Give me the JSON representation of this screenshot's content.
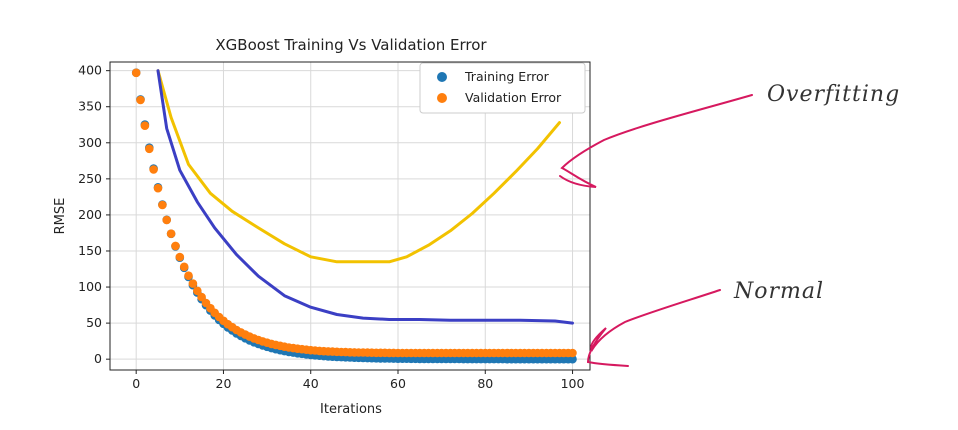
{
  "chart_data": {
    "type": "scatter",
    "title": "XGBoost Training Vs Validation Error",
    "xlabel": "Iterations",
    "ylabel": "RMSE",
    "xlim": [
      -6,
      104
    ],
    "ylim": [
      -15,
      412
    ],
    "xticks": [
      0,
      20,
      40,
      60,
      80,
      100
    ],
    "yticks": [
      0,
      50,
      100,
      150,
      200,
      250,
      300,
      350,
      400
    ],
    "grid": true,
    "legend_position": "top-right",
    "series": [
      {
        "name": "Training Error",
        "color": "#1f77b4",
        "values": [
          397.1,
          360.1,
          325.4,
          293.2,
          264.4,
          238.3,
          214.3,
          193.2,
          173.8,
          156.4,
          140.7,
          126.7,
          114.0,
          102.6,
          92.3,
          83.1,
          74.8,
          67.3,
          60.5,
          54.5,
          49.0,
          44.1,
          39.7,
          35.7,
          32.2,
          28.9,
          26.1,
          23.4,
          21.1,
          19.0,
          17.1,
          15.4,
          13.8,
          12.5,
          11.2,
          10.1,
          9.1,
          8.2,
          7.4,
          6.6,
          6.0,
          5.4,
          4.8,
          4.3,
          3.9,
          3.5,
          3.2,
          2.9,
          2.6,
          2.3,
          2.1,
          1.9,
          1.7,
          1.5,
          1.4,
          1.2,
          1.1,
          1.0,
          0.9,
          0.8,
          0.7,
          0.7,
          0.6,
          0.5,
          0.5,
          0.4,
          0.4,
          0.3,
          0.3,
          0.3,
          0.3,
          0.2,
          0.2,
          0.2,
          0.2,
          0.1,
          0.1,
          0.1,
          0.1,
          0.1,
          0.1,
          0.1,
          0.1,
          0.1,
          0.1,
          0.0,
          0.0,
          0.0,
          0.0,
          0.0,
          0.0,
          0.0,
          0.0,
          0.0,
          0.0,
          0.0,
          0.0,
          0.0,
          0.0,
          0.0,
          0.0
        ]
      },
      {
        "name": "Validation Error",
        "color": "#ff7f0e",
        "values": [
          397.0,
          359.3,
          323.7,
          291.7,
          263.0,
          237.0,
          213.7,
          192.9,
          174.0,
          157.0,
          141.7,
          128.1,
          115.8,
          104.8,
          94.8,
          86.0,
          77.9,
          70.7,
          64.3,
          58.5,
          53.2,
          48.5,
          44.3,
          40.5,
          37.1,
          34.1,
          31.3,
          28.8,
          26.6,
          24.6,
          22.8,
          21.2,
          19.8,
          18.5,
          17.3,
          16.2,
          15.3,
          14.5,
          13.8,
          13.1,
          12.5,
          12.0,
          11.5,
          11.1,
          10.8,
          10.5,
          10.2,
          10.0,
          9.8,
          9.6,
          9.4,
          9.3,
          9.2,
          9.1,
          9.0,
          8.9,
          8.8,
          8.8,
          8.7,
          8.7,
          8.6,
          8.6,
          8.6,
          8.6,
          8.6,
          8.5,
          8.5,
          8.5,
          8.5,
          8.5,
          8.5,
          8.5,
          8.5,
          8.5,
          8.5,
          8.5,
          8.5,
          8.5,
          8.5,
          8.5,
          8.5,
          8.5,
          8.5,
          8.5,
          8.5,
          8.5,
          8.5,
          8.5,
          8.5,
          8.5,
          8.5,
          8.5,
          8.5,
          8.5,
          8.5,
          8.5,
          8.5,
          8.5,
          8.5,
          8.5,
          8.5
        ]
      }
    ],
    "overlays": [
      {
        "kind": "hand-drawn-curve",
        "color": "#f2c200",
        "x": [
          5,
          8,
          12,
          17,
          22,
          28,
          34,
          40,
          46,
          52,
          58,
          62,
          67,
          72,
          77,
          82,
          87,
          92,
          97
        ],
        "y": [
          400,
          335,
          270,
          230,
          205,
          182,
          160,
          142,
          135,
          135,
          135,
          142,
          158,
          178,
          202,
          230,
          260,
          292,
          328
        ]
      },
      {
        "kind": "hand-drawn-curve",
        "color": "#3b3fc4",
        "x": [
          5,
          7,
          10,
          14,
          18,
          23,
          28,
          34,
          40,
          46,
          52,
          58,
          65,
          72,
          80,
          88,
          96,
          100
        ],
        "y": [
          400,
          320,
          262,
          218,
          182,
          145,
          115,
          88,
          72,
          62,
          57,
          55,
          55,
          54,
          54,
          54,
          53,
          50
        ]
      }
    ]
  },
  "annotations": [
    {
      "text": "Overfitting",
      "color": "#d6195f"
    },
    {
      "text": "Normal",
      "color": "#d6195f"
    }
  ]
}
